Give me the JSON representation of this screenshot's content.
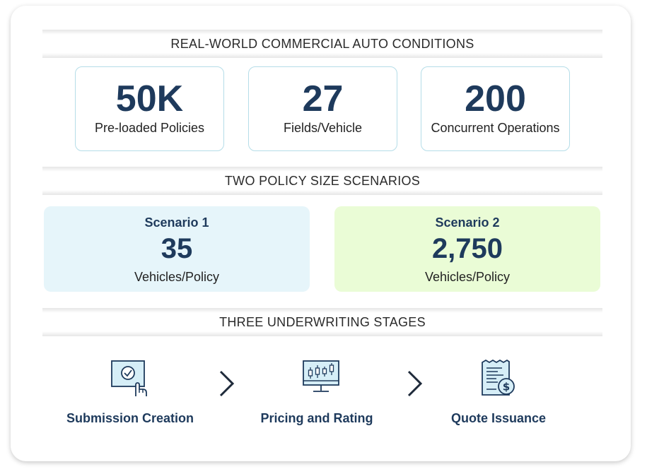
{
  "sections": {
    "conditions": "REAL-WORLD COMMERCIAL AUTO CONDITIONS",
    "scenarios": "TWO POLICY SIZE SCENARIOS",
    "stages": "THREE UNDERWRITING STAGES"
  },
  "stats": [
    {
      "value": "50K",
      "label": "Pre-loaded Policies"
    },
    {
      "value": "27",
      "label": "Fields/Vehicle"
    },
    {
      "value": "200",
      "label": "Concurrent Operations"
    }
  ],
  "scenarios": [
    {
      "title": "Scenario 1",
      "value": "35",
      "label": "Vehicles/Policy",
      "color": "#e6f5fa"
    },
    {
      "title": "Scenario 2",
      "value": "2,750",
      "label": "Vehicles/Policy",
      "color": "#eafcd6"
    }
  ],
  "stages": [
    {
      "label": "Submission Creation",
      "icon": "screen-click-icon"
    },
    {
      "label": "Pricing and Rating",
      "icon": "monitor-chart-icon"
    },
    {
      "label": "Quote Issuance",
      "icon": "receipt-dollar-icon"
    }
  ],
  "colors": {
    "navy": "#1e3a5c",
    "icon_fill": "#d6eef7",
    "stat_border": "#b5dde8"
  }
}
